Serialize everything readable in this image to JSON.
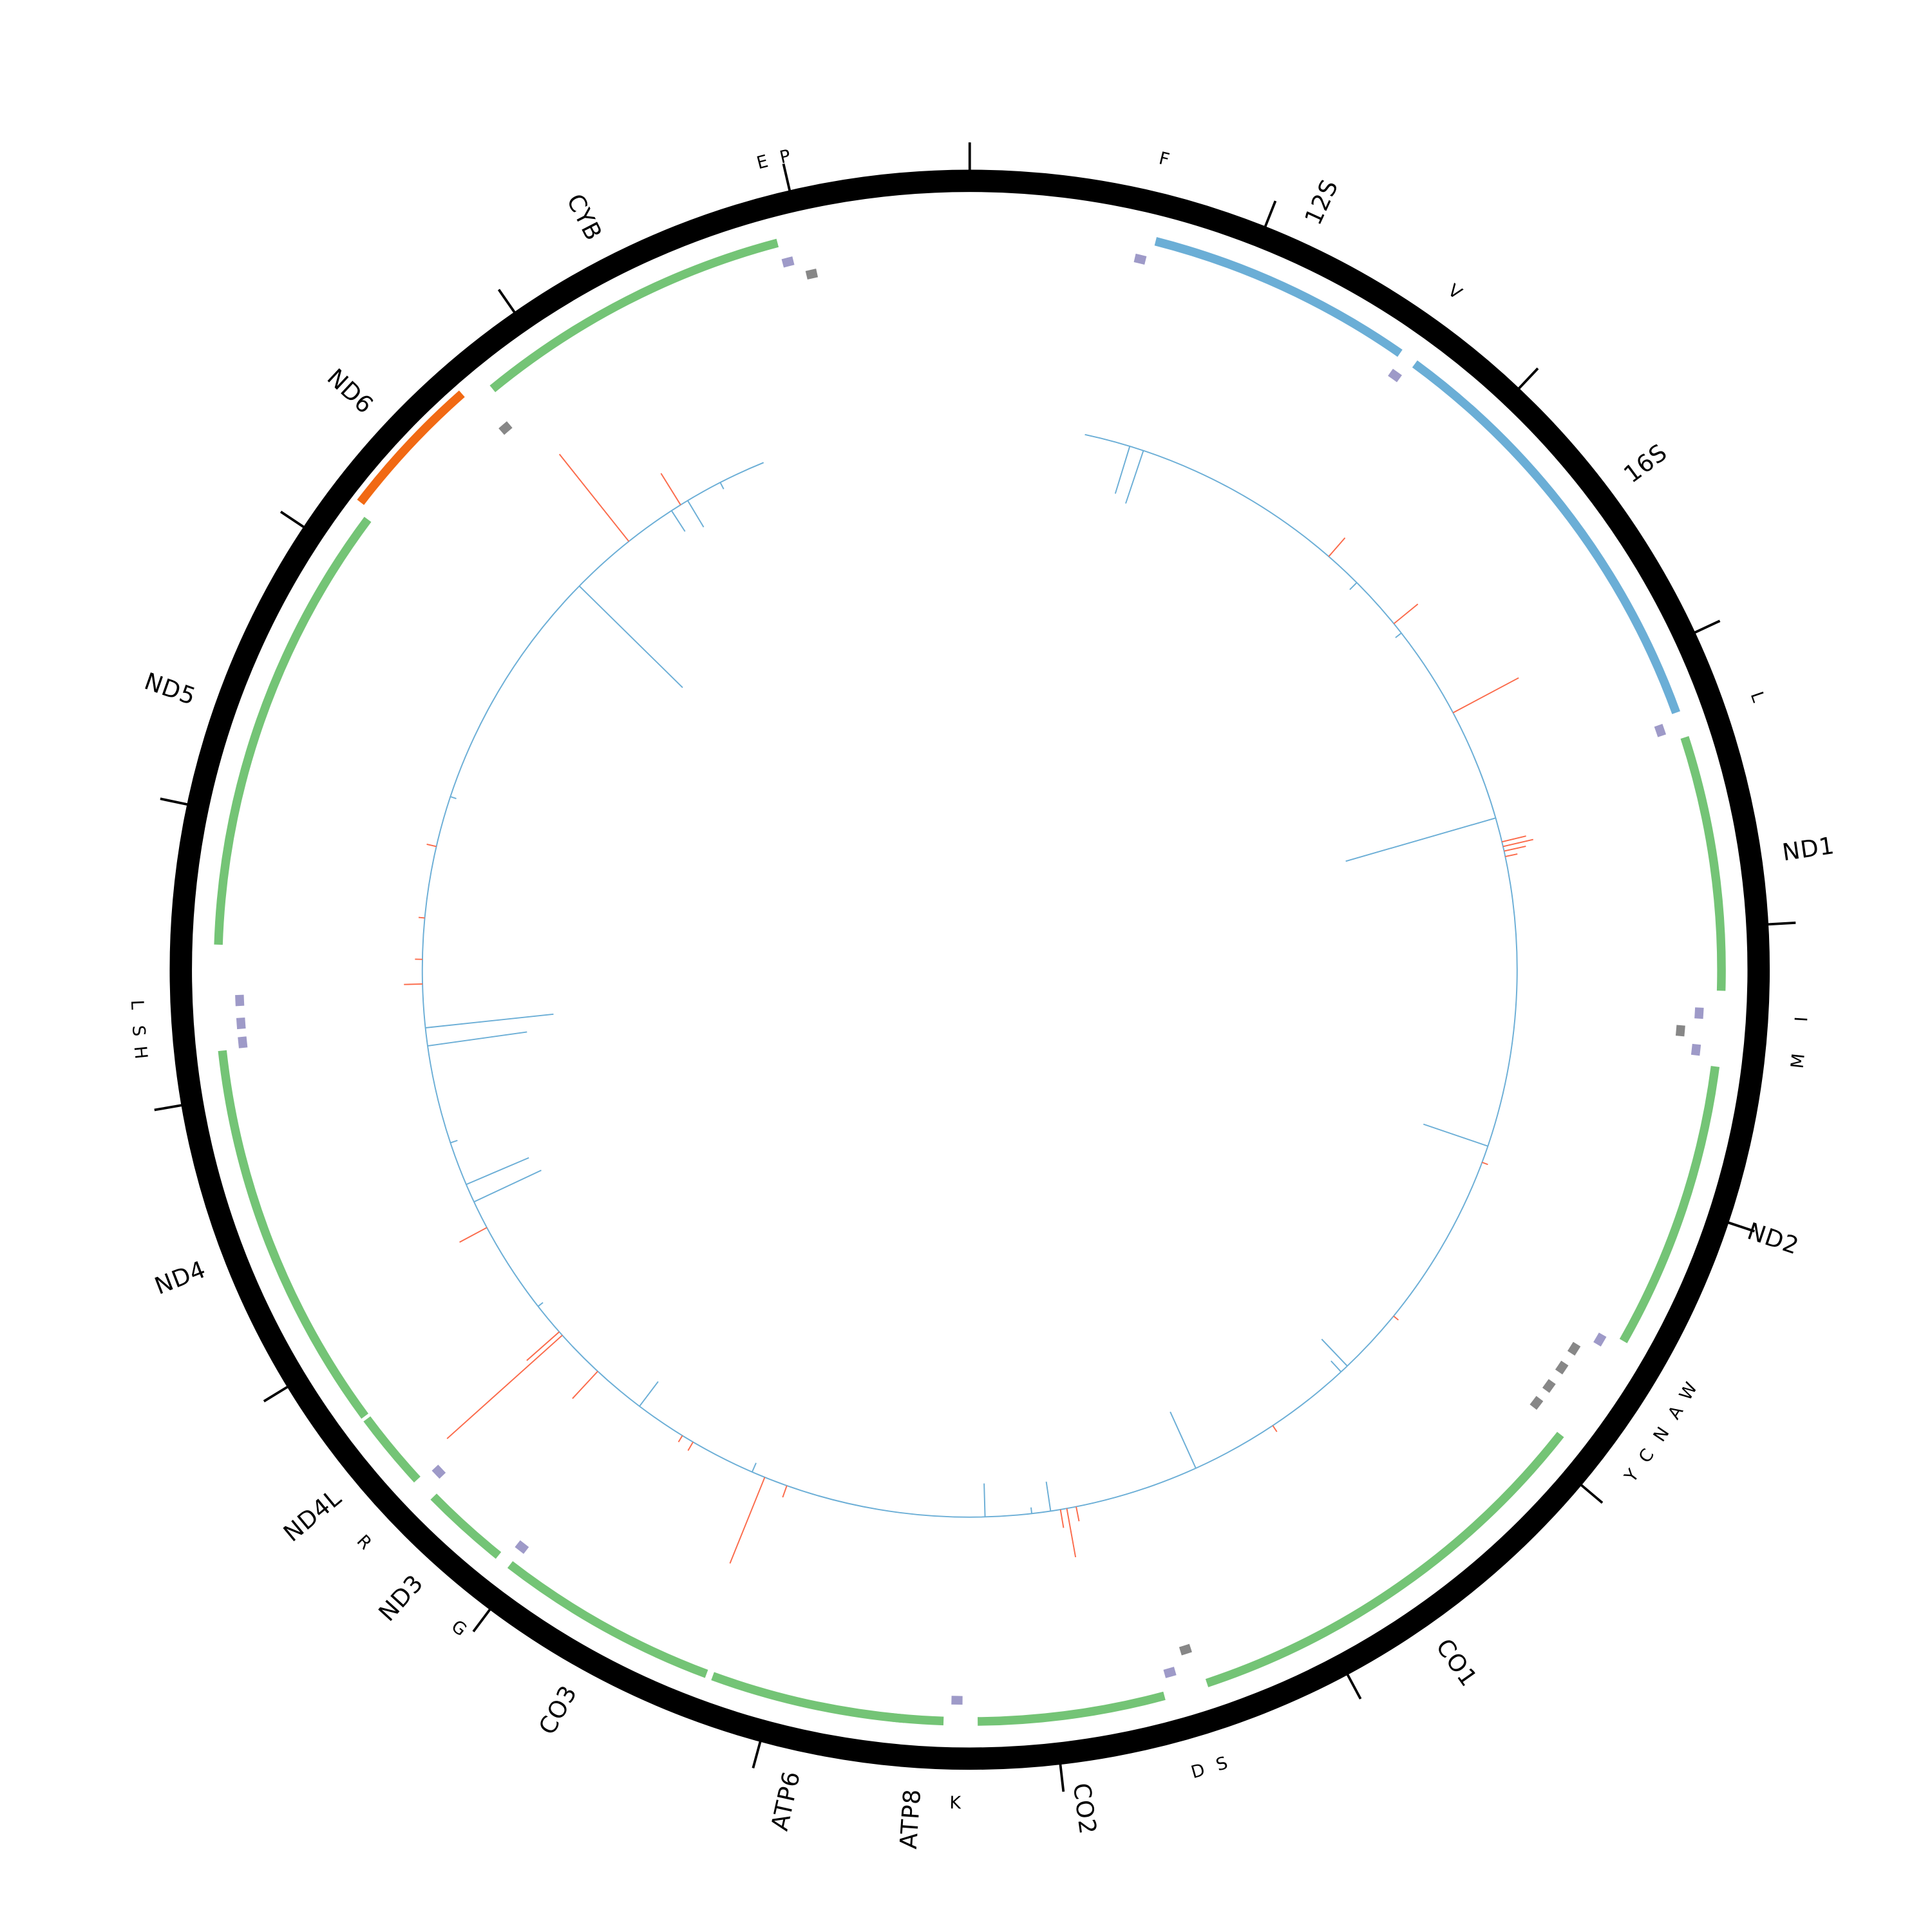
{
  "genome_length": 16600,
  "tick_interval": 1000,
  "colors": {
    "backbone": "#000000",
    "protein_gene": "#74c476",
    "protein_gene_reverse": "#f16913",
    "rRNA": "#6baed6",
    "tRNA": "#9e9ac8",
    "tRNA_reverse": "#878787",
    "track_line": "#6baed6",
    "track_positive": "#fb6a4a",
    "track_negative": "#6baed6"
  },
  "features": [
    {
      "name": "12S",
      "start": 660,
      "end": 1610,
      "kind": "rRNA"
    },
    {
      "name": "16S",
      "start": 1674,
      "end": 3228,
      "kind": "rRNA"
    },
    {
      "name": "ND1",
      "start": 3320,
      "end": 4224,
      "kind": "protein_gene"
    },
    {
      "name": "ND2",
      "start": 4491,
      "end": 5515,
      "kind": "protein_gene"
    },
    {
      "name": "CO1",
      "start": 5911,
      "end": 7452,
      "kind": "protein_gene"
    },
    {
      "name": "CO2",
      "start": 7608,
      "end": 8272,
      "kind": "protein_gene"
    },
    {
      "name": "ATP8",
      "start": 8392,
      "end": 8577,
      "kind": "protein_gene"
    },
    {
      "name": "ATP6",
      "start": 8530,
      "end": 9222,
      "kind": "protein_gene"
    },
    {
      "name": "CO3",
      "start": 9245,
      "end": 10038,
      "kind": "protein_gene"
    },
    {
      "name": "ND3",
      "start": 10090,
      "end": 10398,
      "kind": "protein_gene"
    },
    {
      "name": "ND4L",
      "start": 10481,
      "end": 10758,
      "kind": "protein_gene"
    },
    {
      "name": "ND4",
      "start": 10770,
      "end": 12165,
      "kind": "protein_gene"
    },
    {
      "name": "ND5",
      "start": 12538,
      "end": 14147,
      "kind": "protein_gene"
    },
    {
      "name": "ND6",
      "start": 14179,
      "end": 14691,
      "kind": "protein_gene_reverse"
    },
    {
      "name": "CYB",
      "start": 14783,
      "end": 15917,
      "kind": "protein_gene"
    }
  ],
  "trnas": [
    {
      "name": "F",
      "start": 602,
      "end": 642,
      "kind": "tRNA"
    },
    {
      "name": "V",
      "start": 1621,
      "end": 1661,
      "kind": "tRNA"
    },
    {
      "name": "L",
      "start": 3249,
      "end": 3289,
      "kind": "tRNA"
    },
    {
      "name": "I",
      "start": 4287,
      "end": 4327,
      "kind": "tRNA"
    },
    {
      "name": "",
      "start": 4356,
      "end": 4396,
      "kind": "tRNA_reverse"
    },
    {
      "name": "M",
      "start": 4420,
      "end": 4460,
      "kind": "tRNA"
    },
    {
      "name": "W",
      "start": 5532,
      "end": 5572,
      "kind": "tRNA"
    },
    {
      "name": "A",
      "start": 5610,
      "end": 5650,
      "kind": "tRNA_reverse"
    },
    {
      "name": "N",
      "start": 5693,
      "end": 5733,
      "kind": "tRNA_reverse"
    },
    {
      "name": "C",
      "start": 5776,
      "end": 5816,
      "kind": "tRNA_reverse"
    },
    {
      "name": "Y",
      "start": 5854,
      "end": 5894,
      "kind": "tRNA_reverse"
    },
    {
      "name": "S",
      "start": 7468,
      "end": 7508,
      "kind": "tRNA_reverse"
    },
    {
      "name": "D",
      "start": 7547,
      "end": 7587,
      "kind": "tRNA"
    },
    {
      "name": "K",
      "start": 8326,
      "end": 8366,
      "kind": "tRNA"
    },
    {
      "name": "G",
      "start": 10023,
      "end": 10063,
      "kind": "tRNA"
    },
    {
      "name": "R",
      "start": 10429,
      "end": 10469,
      "kind": "tRNA"
    },
    {
      "name": "H",
      "start": 12167,
      "end": 12207,
      "kind": "tRNA"
    },
    {
      "name": "S",
      "start": 12236,
      "end": 12276,
      "kind": "tRNA"
    },
    {
      "name": "L",
      "start": 12319,
      "end": 12359,
      "kind": "tRNA"
    },
    {
      "name": "",
      "start": 14708,
      "end": 14748,
      "kind": "tRNA_reverse"
    },
    {
      "name": "E",
      "start": 15916,
      "end": 15956,
      "kind": "tRNA"
    },
    {
      "name": "P",
      "start": 15990,
      "end": 16030,
      "kind": "tRNA_reverse"
    }
  ],
  "track": {
    "start": 560,
    "end": 15580,
    "values": [
      {
        "pos": 784,
        "value": -0.4
      },
      {
        "pos": 853,
        "value": -0.45
      },
      {
        "pos": 1890,
        "value": 0.2
      },
      {
        "pos": 2075,
        "value": -0.08
      },
      {
        "pos": 2342,
        "value": 0.25
      },
      {
        "pos": 2400,
        "value": -0.06
      },
      {
        "pos": 2859,
        "value": 0.6
      },
      {
        "pos": 3408,
        "value": -1.26
      },
      {
        "pos": 3527,
        "value": 0.2
      },
      {
        "pos": 3550,
        "value": 0.25
      },
      {
        "pos": 3573,
        "value": 0.18
      },
      {
        "pos": 3600,
        "value": 0.1
      },
      {
        "pos": 5017,
        "value": -0.55
      },
      {
        "pos": 5100,
        "value": 0.05
      },
      {
        "pos": 5960,
        "value": 0.05
      },
      {
        "pos": 6289,
        "value": -0.3
      },
      {
        "pos": 6330,
        "value": -0.12
      },
      {
        "pos": 6750,
        "value": 0.06
      },
      {
        "pos": 7175,
        "value": -0.5
      },
      {
        "pos": 7783,
        "value": 0.12
      },
      {
        "pos": 7829,
        "value": 0.4
      },
      {
        "pos": 7860,
        "value": 0.15
      },
      {
        "pos": 7908,
        "value": -0.24
      },
      {
        "pos": 8000,
        "value": -0.05
      },
      {
        "pos": 8226,
        "value": -0.27
      },
      {
        "pos": 9200,
        "value": 0.1
      },
      {
        "pos": 9314,
        "value": 0.75
      },
      {
        "pos": 9380,
        "value": -0.08
      },
      {
        "pos": 9700,
        "value": 0.08
      },
      {
        "pos": 9760,
        "value": 0.06
      },
      {
        "pos": 10011,
        "value": -0.25
      },
      {
        "pos": 10274,
        "value": 0.3
      },
      {
        "pos": 10518,
        "value": 1.25
      },
      {
        "pos": 10540,
        "value": 0.35
      },
      {
        "pos": 10700,
        "value": -0.05
      },
      {
        "pos": 11154,
        "value": 0.25
      },
      {
        "pos": 11293,
        "value": -0.6
      },
      {
        "pos": 11385,
        "value": -0.55
      },
      {
        "pos": 11600,
        "value": -0.06
      },
      {
        "pos": 12081,
        "value": -0.81
      },
      {
        "pos": 12169,
        "value": -1.04
      },
      {
        "pos": 12381,
        "value": 0.15
      },
      {
        "pos": 12500,
        "value": 0.06
      },
      {
        "pos": 12700,
        "value": 0.05
      },
      {
        "pos": 13050,
        "value": 0.08
      },
      {
        "pos": 13300,
        "value": -0.05
      },
      {
        "pos": 14502,
        "value": -1.17
      },
      {
        "pos": 14824,
        "value": 0.9
      },
      {
        "pos": 15078,
        "value": -0.2
      },
      {
        "pos": 15130,
        "value": 0.3
      },
      {
        "pos": 15170,
        "value": -0.25
      },
      {
        "pos": 15350,
        "value": -0.06
      }
    ]
  }
}
